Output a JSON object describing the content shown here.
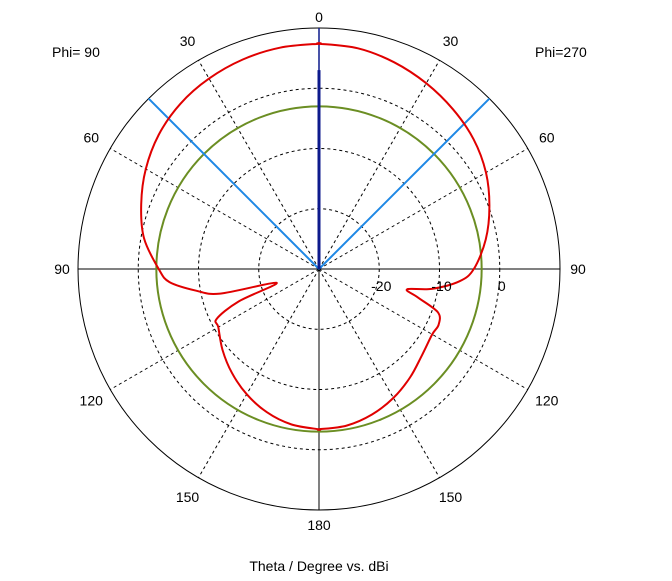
{
  "chart_data": {
    "type": "polar",
    "xlabel": "Theta / Degree vs. dBi",
    "left_label": "Phi= 90",
    "right_label": "Phi=270",
    "r_unit": "dBi",
    "r_ticks": [
      "-20",
      "-10",
      "0"
    ],
    "r_min": -30,
    "r_max": 10,
    "grid_rings_db": [
      -20,
      -10,
      0
    ],
    "outer_ring_db": 10,
    "theta_spoke_deg": [
      30,
      60,
      120,
      150
    ],
    "theta_labels": {
      "top": "0",
      "bottom": "180",
      "left_side": "90",
      "right_side": "90",
      "upper_left": [
        "30",
        "60"
      ],
      "upper_right": [
        "30",
        "60"
      ],
      "lower_left": [
        "120",
        "150"
      ],
      "lower_right": [
        "120",
        "150"
      ]
    },
    "colors": {
      "pattern": "#e00000",
      "reference": "#6b8e23",
      "beamwidth": "#1e88e5",
      "main_lobe": "#0d1a8c",
      "grid": "#000000"
    },
    "reference_circle_db": -3,
    "beamwidth_marker_angles_deg": [
      -45,
      45
    ],
    "main_lobe_direction_deg": 0,
    "main_lobe_marker_db": [
      10,
      3
    ],
    "pattern": {
      "phi_270_side": {
        "theta_deg": [
          0,
          10,
          20,
          30,
          40,
          50,
          60,
          70,
          80,
          90,
          95,
          100,
          103,
          106,
          110,
          115,
          120,
          130,
          140,
          150,
          160,
          170,
          180
        ],
        "gain_dbi": [
          7.4,
          7.2,
          6.5,
          5.6,
          4.6,
          3.5,
          2.0,
          0.1,
          -1.9,
          -4.3,
          -6.6,
          -11.0,
          -15.0,
          -13.0,
          -9.0,
          -8.1,
          -8.3,
          -7.7,
          -6.5,
          -5.3,
          -4.3,
          -3.6,
          -3.4
        ]
      },
      "phi_90_side": {
        "theta_deg": [
          0,
          10,
          20,
          30,
          40,
          50,
          60,
          70,
          80,
          90,
          95,
          100,
          104,
          108,
          112,
          116,
          120,
          130,
          140,
          150,
          160,
          170,
          180
        ],
        "gain_dbi": [
          7.4,
          7.3,
          7.0,
          6.5,
          5.8,
          4.7,
          3.2,
          1.4,
          -0.5,
          -3.4,
          -5.1,
          -9.3,
          -13.1,
          -22.6,
          -15.6,
          -11.1,
          -10.7,
          -9.1,
          -7.5,
          -6.0,
          -4.7,
          -3.8,
          -3.4
        ]
      }
    }
  }
}
